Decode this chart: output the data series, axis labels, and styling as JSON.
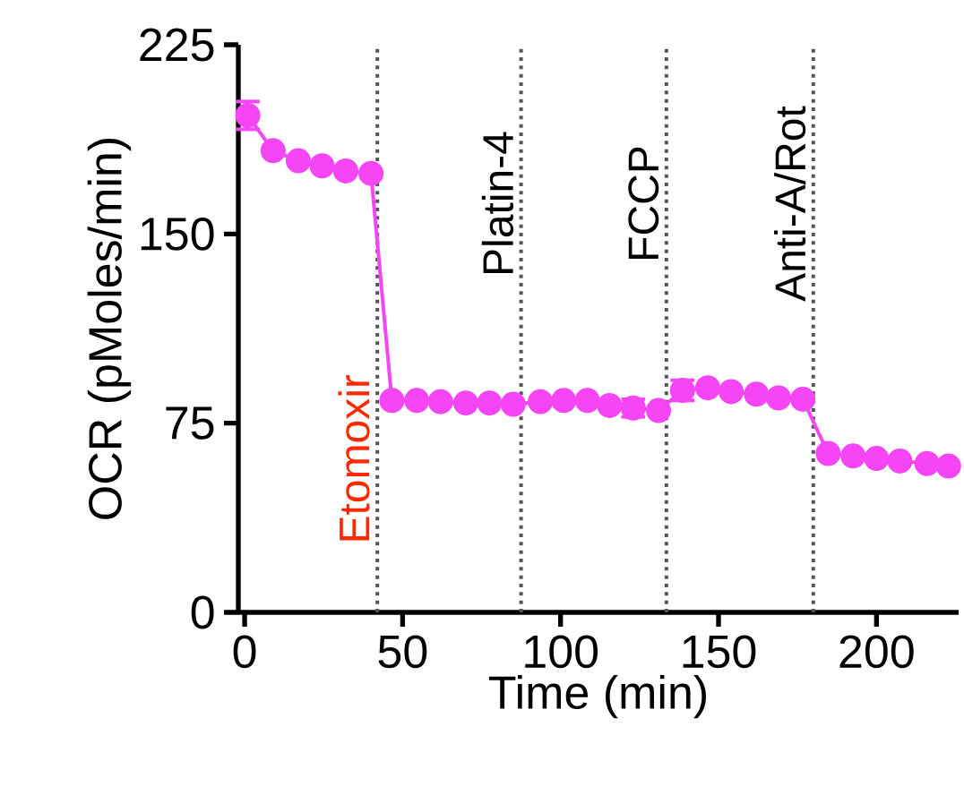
{
  "chart_data": {
    "type": "line",
    "xlabel": "Time (min)",
    "ylabel": "OCR (pMoles/min)",
    "xlim": [
      -2,
      226
    ],
    "xticks": [
      0,
      50,
      100,
      150,
      200
    ],
    "ylim": [
      0,
      225
    ],
    "yticks": [
      0,
      75,
      150,
      225
    ],
    "series": [
      {
        "color": "#f545f5",
        "marker": "circle",
        "line_style": "solid",
        "x": [
          1,
          9,
          17,
          24.5,
          32,
          40,
          46.6,
          54.5,
          62,
          70,
          77.5,
          85,
          93.6,
          101,
          108.5,
          115.5,
          123,
          131,
          138.6,
          146.6,
          154,
          162,
          169,
          176.7,
          184.7,
          192.6,
          200,
          207.4,
          216,
          222.8
        ],
        "values": [
          197,
          183,
          179,
          177,
          175,
          174,
          84,
          84,
          83.5,
          83,
          83,
          82.5,
          83.5,
          84,
          84,
          82,
          81,
          80,
          88,
          89,
          87.5,
          86.5,
          85,
          84.5,
          63,
          62,
          61,
          60,
          59,
          58
        ],
        "errors": [
          5.5,
          null,
          null,
          null,
          null,
          null,
          null,
          null,
          null,
          null,
          null,
          null,
          null,
          null,
          null,
          null,
          3.5,
          null,
          4,
          null,
          null,
          null,
          null,
          null,
          null,
          null,
          null,
          null,
          null,
          null
        ]
      }
    ],
    "ref_lines": [
      {
        "axis": "x",
        "value": 42,
        "label": "Etomoxir",
        "color": "#555555",
        "line_style": "dotted"
      },
      {
        "axis": "x",
        "value": 87.5,
        "label": "Platin-4",
        "color": "#555555",
        "line_style": "dotted"
      },
      {
        "axis": "x",
        "value": 133.5,
        "label": "FCCP",
        "color": "#555555",
        "line_style": "dotted"
      },
      {
        "axis": "x",
        "value": 180,
        "label": "Anti-A/Rot",
        "color": "#555555",
        "line_style": "dotted"
      }
    ],
    "grid": false
  }
}
